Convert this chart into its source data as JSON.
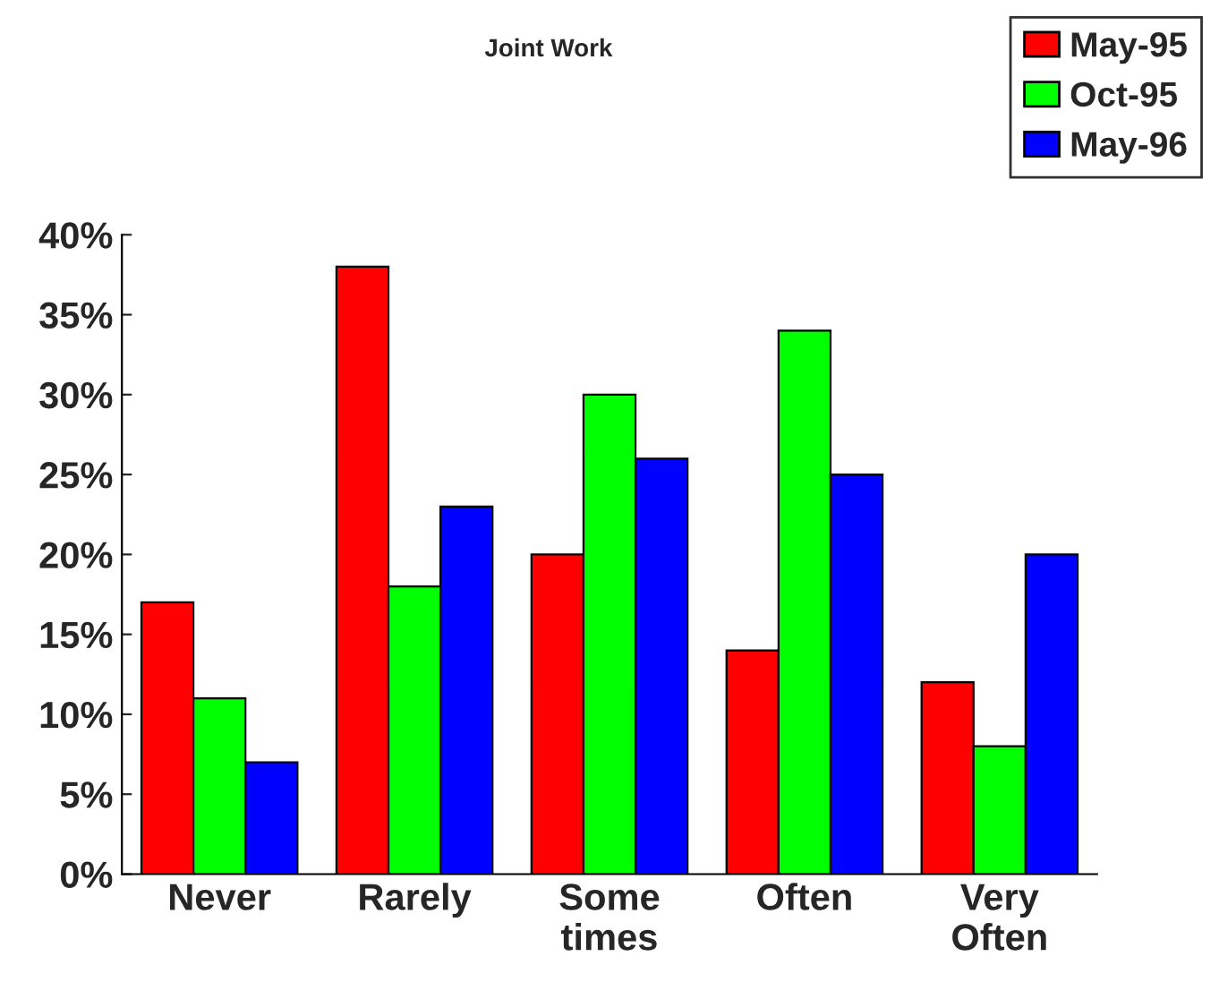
{
  "chart_data": {
    "type": "bar",
    "title": "Joint Work",
    "categories": [
      "Never",
      "Rarely",
      "Some\ntimes",
      "Often",
      "Very\nOften"
    ],
    "series": [
      {
        "name": "May-95",
        "color": "#ff0000",
        "values": [
          17,
          38,
          20,
          14,
          12
        ]
      },
      {
        "name": "Oct-95",
        "color": "#00ff00",
        "values": [
          11,
          18,
          30,
          34,
          8
        ]
      },
      {
        "name": "May-96",
        "color": "#0000ff",
        "values": [
          7,
          23,
          26,
          25,
          20
        ]
      }
    ],
    "ylim": [
      0,
      40
    ],
    "yticks": [
      {
        "value": 0,
        "label": "0%"
      },
      {
        "value": 5,
        "label": "5%"
      },
      {
        "value": 10,
        "label": "10%"
      },
      {
        "value": 15,
        "label": "15%"
      },
      {
        "value": 20,
        "label": "20%"
      },
      {
        "value": 25,
        "label": "25%"
      },
      {
        "value": 30,
        "label": "30%"
      },
      {
        "value": 35,
        "label": "35%"
      },
      {
        "value": 40,
        "label": "40%"
      }
    ],
    "grid": false,
    "legend": "top right"
  }
}
